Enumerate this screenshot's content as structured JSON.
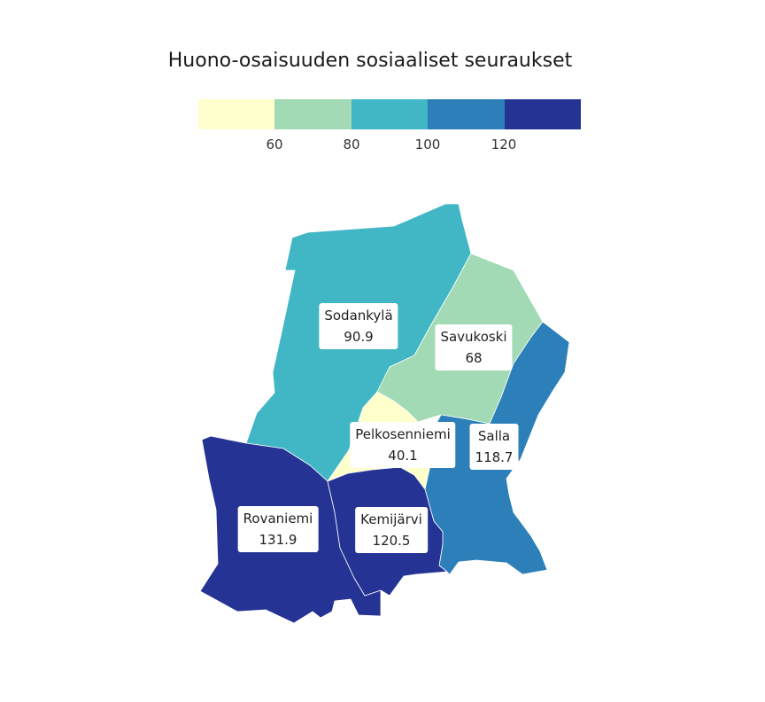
{
  "title": "Huono-osaisuuden sosiaaliset seuraukset",
  "legend": {
    "colors": [
      "#ffffcc",
      "#a1dab4",
      "#41b6c4",
      "#2c7fb8",
      "#253494"
    ],
    "ticks": [
      "60",
      "80",
      "100",
      "120"
    ]
  },
  "regions": [
    {
      "name": "Sodankylä",
      "value": "90.9",
      "color": "#41b6c4"
    },
    {
      "name": "Savukoski",
      "value": "68",
      "color": "#a1dab4"
    },
    {
      "name": "Pelkosenniemi",
      "value": "40.1",
      "color": "#ffffcc"
    },
    {
      "name": "Salla",
      "value": "118.7",
      "color": "#2c7fb8"
    },
    {
      "name": "Rovaniemi",
      "value": "131.9",
      "color": "#253494"
    },
    {
      "name": "Kemijärvi",
      "value": "120.5",
      "color": "#253494"
    }
  ]
}
